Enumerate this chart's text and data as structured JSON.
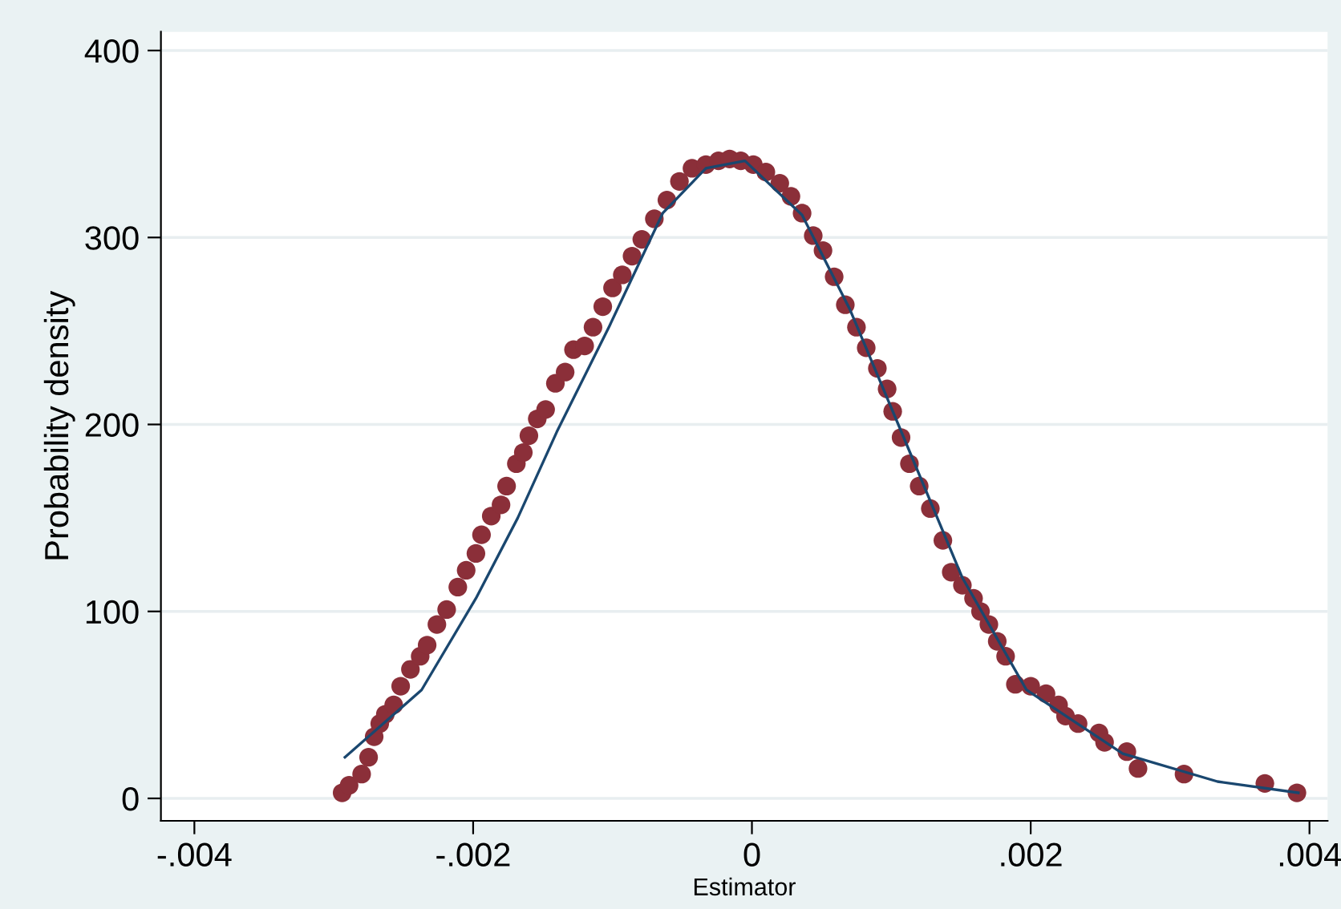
{
  "chart_data": {
    "type": "scatter",
    "xlabel": "Estimator",
    "ylabel": "Probability density",
    "xlim": [
      -0.00424,
      0.00413
    ],
    "ylim": [
      -12,
      410
    ],
    "xticks": [
      {
        "value": -0.004,
        "label": "-.004"
      },
      {
        "value": -0.002,
        "label": "-.002"
      },
      {
        "value": 0,
        "label": "0"
      },
      {
        "value": 0.002,
        "label": ".002"
      },
      {
        "value": 0.004,
        "label": ".004"
      }
    ],
    "yticks": [
      0,
      100,
      200,
      300,
      400
    ],
    "grid": "y",
    "marker": "circle",
    "series": [
      {
        "color": "#8b2f39",
        "x": [
          -0.00294,
          -0.00289,
          -0.0028,
          -0.00275,
          -0.00271,
          -0.00267,
          -0.00263,
          -0.00257,
          -0.00252,
          -0.00245,
          -0.00238,
          -0.00233,
          -0.00226,
          -0.00219,
          -0.00211,
          -0.00205,
          -0.00198,
          -0.00194,
          -0.00187,
          -0.0018,
          -0.00176,
          -0.00169,
          -0.00164,
          -0.0016,
          -0.00154,
          -0.00148,
          -0.00141,
          -0.00134,
          -0.00128,
          -0.0012,
          -0.00114,
          -0.00107,
          -0.001,
          -0.00093,
          -0.00086,
          -0.00079,
          -0.0007,
          -0.00061,
          -0.00052,
          -0.00043,
          -0.00033,
          -0.00024,
          -0.00016,
          -8e-05,
          1e-05,
          0.0001,
          0.0002,
          0.00028,
          0.00036,
          0.00044,
          0.00051,
          0.00059,
          0.00067,
          0.00075,
          0.00082,
          0.0009,
          0.00097,
          0.00101,
          0.00107,
          0.00113,
          0.0012,
          0.00128,
          0.00137,
          0.00143,
          0.00151,
          0.00159,
          0.00164,
          0.0017,
          0.00176,
          0.00182,
          0.00189,
          0.002,
          0.00211,
          0.0022,
          0.00225,
          0.00234,
          0.00249,
          0.00253,
          0.00269,
          0.00277,
          0.0031,
          0.00368,
          0.00391
        ],
        "values": [
          3,
          7,
          13,
          22,
          33,
          40,
          45,
          50,
          60,
          69,
          76,
          82,
          93,
          101,
          113,
          122,
          131,
          141,
          151,
          157,
          167,
          179,
          185,
          194,
          203,
          208,
          222,
          228,
          240,
          242,
          252,
          263,
          273,
          280,
          290,
          299,
          310,
          320,
          330,
          337,
          339,
          341,
          342,
          341,
          339,
          335,
          329,
          322,
          313,
          301,
          293,
          279,
          264,
          252,
          241,
          230,
          219,
          207,
          193,
          179,
          167,
          155,
          138,
          121,
          114,
          107,
          100,
          93,
          84,
          76,
          61,
          60,
          56,
          50,
          44,
          40,
          35,
          30,
          25,
          16,
          13,
          8,
          3
        ]
      },
      {
        "type": "line",
        "marker": "none",
        "color": "#1a476f",
        "x": [
          -0.00292,
          -0.00237,
          -0.00198,
          -0.00168,
          -0.0014,
          -0.00102,
          -0.00064,
          -0.00033,
          -5e-05,
          0.00036,
          0.0007,
          0.00105,
          0.00151,
          0.00197,
          0.00266,
          0.00334,
          0.00392
        ],
        "values": [
          22,
          58,
          107,
          150,
          196,
          253,
          313,
          337,
          341,
          312,
          262,
          200,
          118,
          58,
          24,
          9,
          3
        ]
      }
    ]
  }
}
